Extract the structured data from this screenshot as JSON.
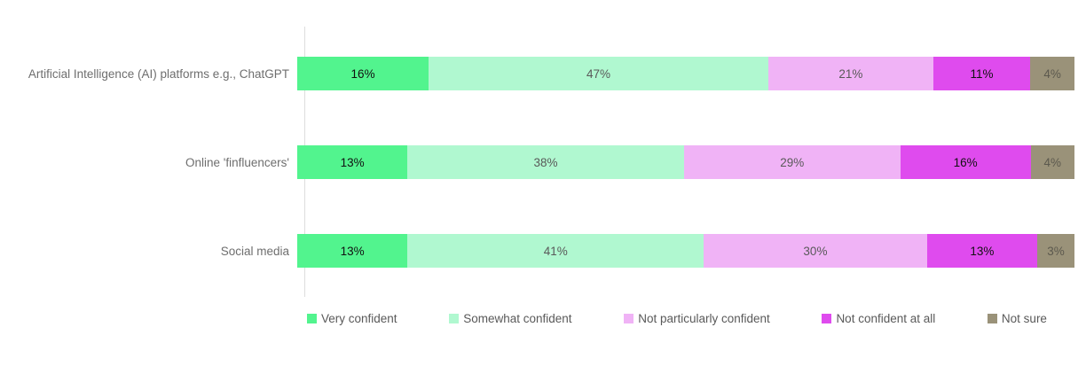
{
  "chart_data": {
    "type": "bar",
    "orientation": "horizontal",
    "stacked": true,
    "categories": [
      "Artificial Intelligence (AI) platforms e.g., ChatGPT",
      "Online 'finfluencers'",
      "Social media"
    ],
    "series": [
      {
        "name": "Very confident",
        "color": "#52F48E",
        "label_color": "#111111",
        "values": [
          16,
          13,
          13
        ]
      },
      {
        "name": "Somewhat confident",
        "color": "#B0F8D0",
        "label_color": "#595959",
        "values": [
          47,
          38,
          41
        ]
      },
      {
        "name": "Not particularly confident",
        "color": "#F0B3F6",
        "label_color": "#595959",
        "values": [
          21,
          29,
          30
        ]
      },
      {
        "name": "Not confident at all",
        "color": "#DF4BEE",
        "label_color": "#111111",
        "values": [
          11,
          16,
          13
        ]
      },
      {
        "name": "Not sure",
        "color": "#9A9279",
        "label_color": "#5c594e",
        "values": [
          4,
          4,
          3
        ]
      }
    ],
    "value_suffix": "%",
    "title": "",
    "xlabel": "",
    "ylabel": "",
    "xlim": [
      0,
      100
    ],
    "grid": false,
    "legend_position": "bottom",
    "axis_line_color": "#dddddd",
    "label_text_color": "#6e6e6e",
    "legend_text_color": "#595959"
  }
}
